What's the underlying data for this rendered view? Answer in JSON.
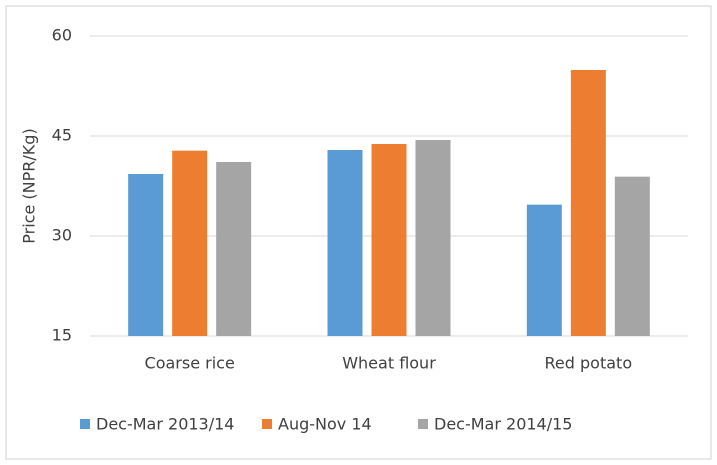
{
  "chart_data": {
    "type": "bar",
    "y_label": "Price (NPR/Kg)",
    "categories": [
      "Coarse rice",
      "Wheat flour",
      "Red potato"
    ],
    "series": [
      {
        "name": "Dec-Mar 2013/14",
        "color": "#5b9bd5",
        "values": [
          39.3,
          42.9,
          34.7
        ]
      },
      {
        "name": "Aug-Nov 14",
        "color": "#ed7d31",
        "values": [
          42.8,
          43.8,
          54.9
        ]
      },
      {
        "name": "Dec-Mar 2014/15",
        "color": "#a5a5a5",
        "values": [
          41.1,
          44.4,
          38.9
        ]
      }
    ],
    "ylim": [
      15,
      60
    ],
    "yticks": [
      15,
      30,
      45,
      60
    ],
    "grid": true,
    "legend": "bottom"
  }
}
